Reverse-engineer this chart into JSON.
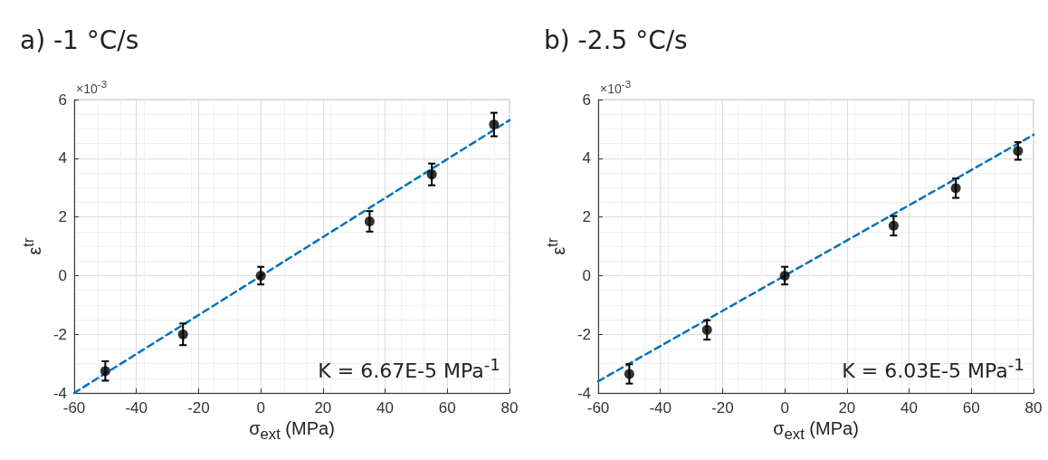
{
  "chart_data": [
    {
      "type": "scatter",
      "title": "a) -1 °C/s",
      "xlabel": "σ$_{ext}$ (MPa)",
      "ylabel": "ε$^{tr}$",
      "annotations": [
        "×10$^{-3}$",
        "K = 6.67E-5 MPa$^{-1}$"
      ],
      "xlim": [
        -60,
        80
      ],
      "xticks": [
        -60,
        -40,
        -20,
        0,
        20,
        40,
        60,
        80
      ],
      "ylim": [
        -4,
        6
      ],
      "yticks": [
        -4,
        -2,
        0,
        2,
        4,
        6
      ],
      "grid": true,
      "marker": "circle",
      "series": [
        {
          "color": "#000000",
          "x": [
            -50,
            -25,
            0,
            35,
            55,
            75
          ],
          "values": [
            -3.25,
            -2.0,
            0,
            1.85,
            3.45,
            5.15
          ],
          "errors": [
            0.33,
            0.37,
            0.3,
            0.35,
            0.37,
            0.4
          ]
        },
        {
          "type": "line",
          "color": "#0072bd",
          "line_style": "dashed",
          "marker": "none",
          "x": [
            -60,
            80
          ],
          "values": [
            -4.0,
            5.3
          ]
        }
      ]
    },
    {
      "type": "scatter",
      "title": "b) -2.5 °C/s",
      "xlabel": "σ$_{ext}$ (MPa)",
      "ylabel": "ε$^{tr}$",
      "annotations": [
        "×10$^{-3}$",
        "K = 6.03E-5 MPa$^{-1}$"
      ],
      "xlim": [
        -60,
        80
      ],
      "xticks": [
        -60,
        -40,
        -20,
        0,
        20,
        40,
        60,
        80
      ],
      "ylim": [
        -4,
        6
      ],
      "yticks": [
        -4,
        -2,
        0,
        2,
        4,
        6
      ],
      "grid": true,
      "marker": "circle",
      "series": [
        {
          "color": "#000000",
          "x": [
            -50,
            -25,
            0,
            35,
            55,
            75
          ],
          "values": [
            -3.35,
            -1.85,
            0,
            1.7,
            2.98,
            4.25
          ],
          "errors": [
            0.33,
            0.33,
            0.3,
            0.33,
            0.33,
            0.3
          ]
        },
        {
          "type": "line",
          "color": "#0072bd",
          "line_style": "dashed",
          "marker": "none",
          "x": [
            -60,
            80
          ],
          "values": [
            -3.6,
            4.8
          ]
        }
      ]
    }
  ]
}
